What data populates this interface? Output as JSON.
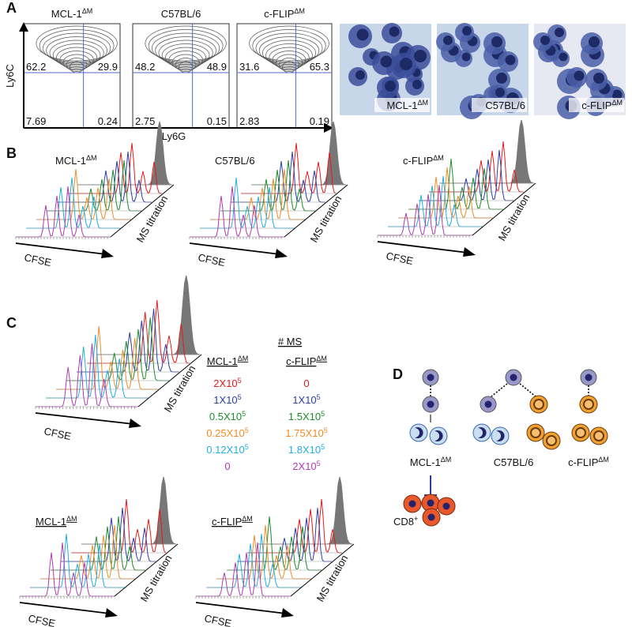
{
  "panelA": {
    "letter": "A",
    "y_axis": "Ly6C",
    "x_axis": "Ly6G",
    "plots": [
      {
        "title": {
          "base": "MCL-1",
          "sup": "ΔM"
        },
        "quadrants": [
          "62.2",
          "29.9",
          "7.69",
          "0.24"
        ]
      },
      {
        "title": {
          "base": "C57BL/6",
          "sup": ""
        },
        "quadrants": [
          "48.2",
          "48.9",
          "2.75",
          "0.15"
        ]
      },
      {
        "title": {
          "base": "c-FLIP",
          "sup": "ΔM"
        },
        "quadrants": [
          "31.6",
          "65.3",
          "2.83",
          "0.19"
        ]
      }
    ],
    "images": [
      {
        "base": "MCL-1",
        "sup": "ΔM"
      },
      {
        "base": "C57BL/6",
        "sup": ""
      },
      {
        "base": "c-FLIP",
        "sup": "ΔM"
      }
    ]
  },
  "panelB": {
    "letter": "B",
    "x_label": "CFSE",
    "z_label": "MS titration",
    "titles": [
      {
        "base": "MCL-1",
        "sup": "ΔM"
      },
      {
        "base": "C57BL/6",
        "sup": ""
      },
      {
        "base": "c-FLIP",
        "sup": "ΔM"
      }
    ]
  },
  "panelC": {
    "letter": "C",
    "x_label": "CFSE",
    "z_label": "MS titration",
    "table_title": "# MS",
    "headers": [
      {
        "base": "MCL-1",
        "sup": "ΔM"
      },
      {
        "base": "c-FLIP",
        "sup": "ΔM"
      }
    ],
    "rows": [
      {
        "color": "#e41a1c",
        "cells": [
          {
            "base": "2X10",
            "sup": "5"
          },
          {
            "base": "0",
            "sup": ""
          }
        ]
      },
      {
        "color": "#2b3fa6",
        "cells": [
          {
            "base": "1X10",
            "sup": "5"
          },
          {
            "base": "1X10",
            "sup": "5"
          }
        ]
      },
      {
        "color": "#1e8c2a",
        "cells": [
          {
            "base": "0.5X10",
            "sup": "5"
          },
          {
            "base": "1.5X10",
            "sup": "5"
          }
        ]
      },
      {
        "color": "#f08c28",
        "cells": [
          {
            "base": "0.25X10",
            "sup": "5"
          },
          {
            "base": "1.75X10",
            "sup": "5"
          }
        ]
      },
      {
        "color": "#22aee0",
        "cells": [
          {
            "base": "0.12X10",
            "sup": "5"
          },
          {
            "base": "1.8X10",
            "sup": "5"
          }
        ]
      },
      {
        "color": "#b03cb0",
        "cells": [
          {
            "base": "0",
            "sup": ""
          },
          {
            "base": "2X10",
            "sup": "5"
          }
        ]
      }
    ],
    "bottom_titles": [
      {
        "base": "MCL-1",
        "sup": "ΔM"
      },
      {
        "base": "c-FLIP",
        "sup": "ΔM"
      }
    ]
  },
  "panelD": {
    "letter": "D",
    "labels": [
      {
        "base": "MCL-1",
        "sup": "ΔM"
      },
      {
        "base": "C57BL/6",
        "sup": ""
      },
      {
        "base": "c-FLIP",
        "sup": "ΔM"
      }
    ],
    "cd8": {
      "base": "CD8",
      "sup": "+"
    }
  }
}
